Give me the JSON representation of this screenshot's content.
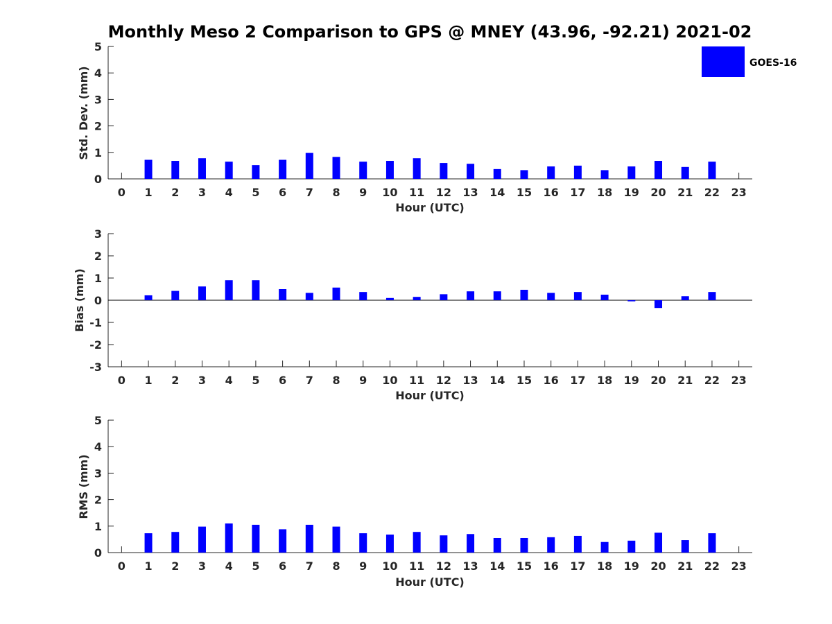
{
  "figure": {
    "title": "Monthly Meso 2 Comparison to GPS @ MNEY (43.96, -92.21) 2021-02"
  },
  "legend": {
    "label": "GOES-16",
    "color": "#0000ff",
    "placement": "top-right"
  },
  "chart_data": [
    {
      "type": "bar",
      "series": [
        {
          "name": "GOES-16",
          "color": "#0000ff",
          "x": [
            1,
            2,
            3,
            4,
            5,
            6,
            7,
            8,
            9,
            10,
            11,
            12,
            13,
            14,
            15,
            16,
            17,
            18,
            19,
            20,
            21,
            22
          ],
          "values": [
            0.72,
            0.68,
            0.78,
            0.65,
            0.52,
            0.72,
            0.98,
            0.83,
            0.65,
            0.68,
            0.78,
            0.6,
            0.57,
            0.37,
            0.33,
            0.47,
            0.5,
            0.33,
            0.47,
            0.68,
            0.45,
            0.65
          ]
        }
      ],
      "xticks": [
        0,
        1,
        2,
        3,
        4,
        5,
        6,
        7,
        8,
        9,
        10,
        11,
        12,
        13,
        14,
        15,
        16,
        17,
        18,
        19,
        20,
        21,
        22,
        23
      ],
      "xlim": [
        -0.5,
        23.5
      ],
      "ylim": [
        0,
        5
      ],
      "yticks": [
        0,
        1,
        2,
        3,
        4,
        5
      ],
      "xlabel": "Hour (UTC)",
      "ylabel": "Std. Dev. (mm)",
      "grid": false
    },
    {
      "type": "bar",
      "series": [
        {
          "name": "GOES-16",
          "color": "#0000ff",
          "x": [
            1,
            2,
            3,
            4,
            5,
            6,
            7,
            8,
            9,
            10,
            11,
            12,
            13,
            14,
            15,
            16,
            17,
            18,
            19,
            20,
            21,
            22
          ],
          "values": [
            0.22,
            0.42,
            0.62,
            0.9,
            0.9,
            0.5,
            0.33,
            0.57,
            0.37,
            0.1,
            0.15,
            0.27,
            0.4,
            0.4,
            0.47,
            0.33,
            0.37,
            0.25,
            -0.05,
            -0.35,
            0.18,
            0.37
          ]
        }
      ],
      "xticks": [
        0,
        1,
        2,
        3,
        4,
        5,
        6,
        7,
        8,
        9,
        10,
        11,
        12,
        13,
        14,
        15,
        16,
        17,
        18,
        19,
        20,
        21,
        22,
        23
      ],
      "xlim": [
        -0.5,
        23.5
      ],
      "ylim": [
        -3,
        3
      ],
      "yticks": [
        -3,
        -2,
        -1,
        0,
        1,
        2,
        3
      ],
      "xlabel": "Hour (UTC)",
      "ylabel": "Bias (mm)",
      "grid": false
    },
    {
      "type": "bar",
      "series": [
        {
          "name": "GOES-16",
          "color": "#0000ff",
          "x": [
            1,
            2,
            3,
            4,
            5,
            6,
            7,
            8,
            9,
            10,
            11,
            12,
            13,
            14,
            15,
            16,
            17,
            18,
            19,
            20,
            21,
            22
          ],
          "values": [
            0.73,
            0.78,
            0.98,
            1.1,
            1.05,
            0.88,
            1.05,
            0.98,
            0.73,
            0.68,
            0.78,
            0.65,
            0.7,
            0.55,
            0.55,
            0.58,
            0.63,
            0.4,
            0.45,
            0.75,
            0.47,
            0.73
          ]
        }
      ],
      "xticks": [
        0,
        1,
        2,
        3,
        4,
        5,
        6,
        7,
        8,
        9,
        10,
        11,
        12,
        13,
        14,
        15,
        16,
        17,
        18,
        19,
        20,
        21,
        22,
        23
      ],
      "xlim": [
        -0.5,
        23.5
      ],
      "ylim": [
        0,
        5
      ],
      "yticks": [
        0,
        1,
        2,
        3,
        4,
        5
      ],
      "xlabel": "Hour (UTC)",
      "ylabel": "RMS (mm)",
      "grid": false
    }
  ]
}
